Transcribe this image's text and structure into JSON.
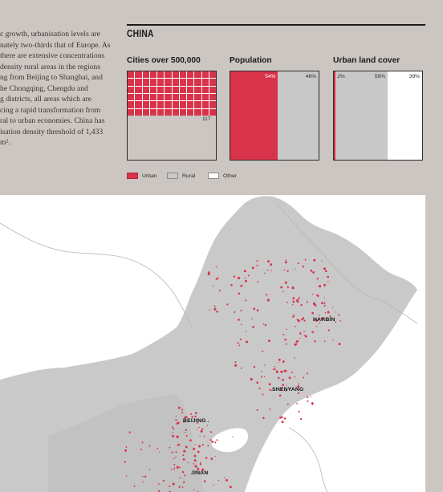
{
  "intro_lines": [
    "c growth, urbanisation levels are",
    "nately two-thirds that of Europe. As",
    "there are extensive concentrations",
    "density rural areas in the regions",
    "ng from Beijing to Shanghai, and",
    "he Chongqing, Chengdu and",
    "g districts, all areas which are",
    "cing a rapid transformation from",
    "ral to urban economies. China has",
    "isation density threshold of 1,433",
    "m²."
  ],
  "title": "CHINA",
  "cities": {
    "title": "Cities over 500,000",
    "value": 117,
    "label": "117"
  },
  "population": {
    "title": "Population",
    "urban_pct": 54,
    "rural_pct": 46,
    "urban_label": "54%",
    "rural_label": "46%"
  },
  "land": {
    "title": "Urban land cover",
    "urban_pct": 2,
    "rural_pct": 59,
    "other_pct": 39,
    "urban_label": "2%",
    "rural_label": "59%",
    "other_label": "39%"
  },
  "legend": {
    "urban": "Urban",
    "rural": "Rural",
    "other": "Other"
  },
  "colors": {
    "urban": "#d8334a",
    "rural": "#c8c8c8",
    "other": "#ffffff",
    "background": "#ccc6c2"
  },
  "map_labels": {
    "harbin": "HARBIN",
    "shenyang": "SHENYANG",
    "beijing": "BEIJING",
    "jinan": "JINAN"
  }
}
